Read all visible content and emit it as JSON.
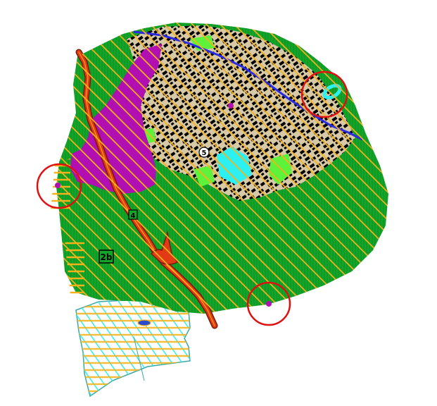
{
  "map": {
    "zone_labels": {
      "zone_2b": "2b",
      "zone_4": "4",
      "zone_5": "5"
    },
    "colors": {
      "hatch_orange": "#f6b21a",
      "forest_green": "#12a52a",
      "light_green": "#5ef23a",
      "magenta": "#b10fb1",
      "road_red": "#e33a16",
      "cyan": "#2df1f1",
      "rail_blue": "#2a2ae0",
      "black": "#000000",
      "highlight_circle": "#e01010"
    }
  }
}
